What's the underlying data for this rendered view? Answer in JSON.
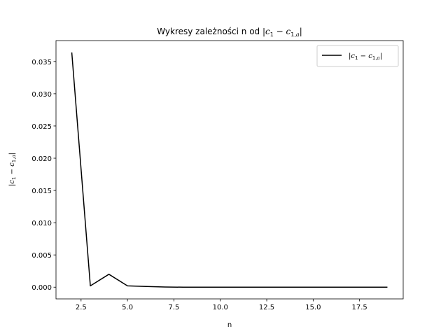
{
  "chart_data": {
    "type": "line",
    "title": "Wykresy zależności n od |c₁ − c₁,ₐ|",
    "title_prefix": "Wykresy zależności n od ",
    "xlabel": "n",
    "ylabel": "|c₁ − c₁,ₐ|",
    "xlim": [
      1.15,
      19.85
    ],
    "ylim": [
      -0.00182,
      0.03824
    ],
    "xticks": [
      2.5,
      5.0,
      7.5,
      10.0,
      12.5,
      15.0,
      17.5
    ],
    "xtick_labels": [
      "2.5",
      "5.0",
      "7.5",
      "10.0",
      "12.5",
      "15.0",
      "17.5"
    ],
    "yticks": [
      0.0,
      0.005,
      0.01,
      0.015,
      0.02,
      0.025,
      0.03,
      0.035
    ],
    "ytick_labels": [
      "0.000",
      "0.005",
      "0.010",
      "0.015",
      "0.020",
      "0.025",
      "0.030",
      "0.035"
    ],
    "legend_position": "top-right",
    "grid": false,
    "series": [
      {
        "name": "|c₁ − c₁,ₐ|",
        "color": "#000000",
        "x": [
          2,
          3,
          4,
          5,
          6,
          7,
          8,
          9,
          10,
          11,
          12,
          13,
          14,
          15,
          16,
          17,
          18,
          19
        ],
        "values": [
          0.0364,
          0.0002,
          0.002,
          0.0002,
          0.0001,
          2e-05,
          0.0,
          0.0,
          0.0,
          0.0,
          0.0,
          0.0,
          0.0,
          0.0,
          0.0,
          0.0,
          0.0,
          0.0
        ]
      }
    ]
  }
}
